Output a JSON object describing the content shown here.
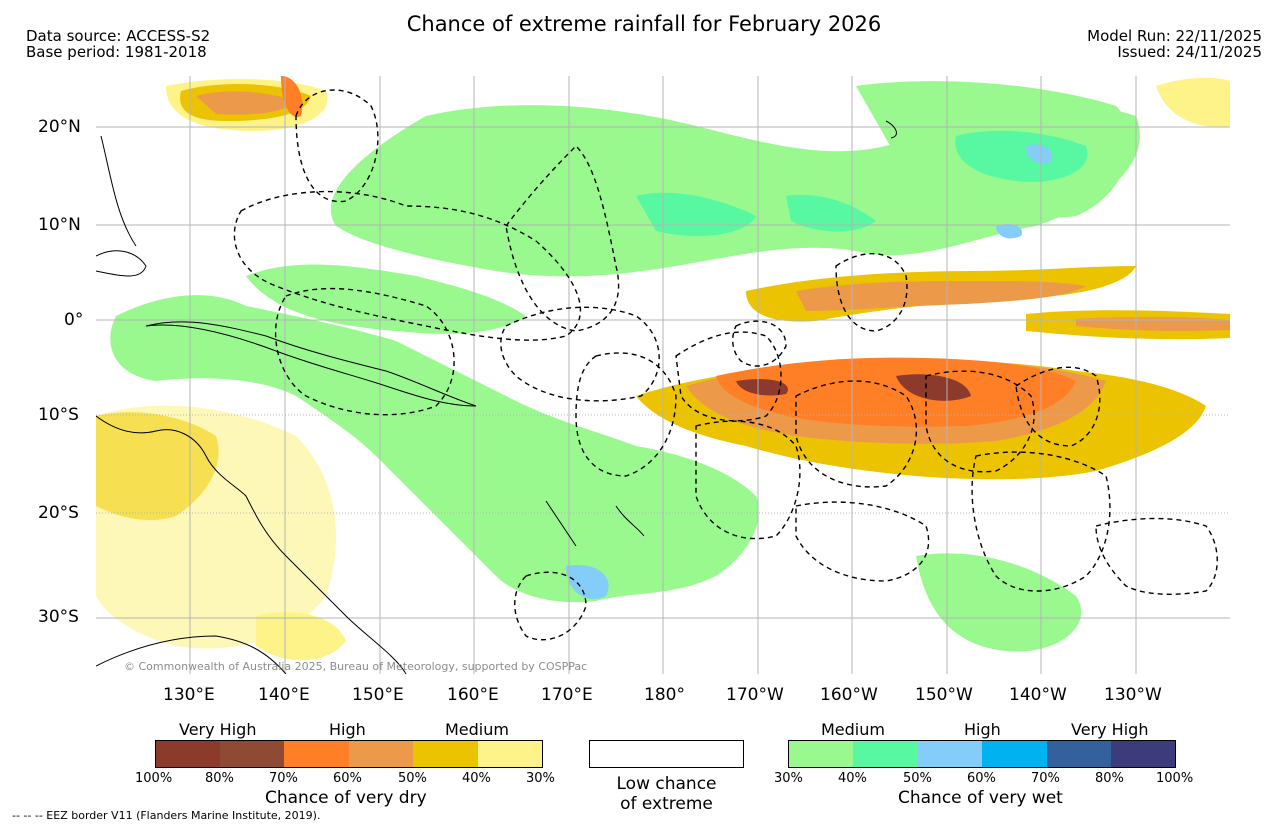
{
  "header": {
    "title": "Chance of extreme rainfall for February 2026",
    "data_source": "Data source: ACCESS-S2",
    "base_period": "Base period: 1981-2018",
    "model_run": "Model Run: 22/11/2025",
    "issued": "Issued: 24/11/2025"
  },
  "map": {
    "lat_labels": [
      "20°N",
      "10°N",
      "0°",
      "10°S",
      "20°S",
      "30°S"
    ],
    "lon_labels": [
      "130°E",
      "140°E",
      "150°E",
      "160°E",
      "170°E",
      "180°",
      "170°W",
      "160°W",
      "150°W",
      "140°W",
      "130°W"
    ],
    "credit": "© Commonwealth of Australia 2025, Bureau of Meteorology, supported by COSPPac",
    "colors": {
      "dry_very_high_100": "#8b3a2c",
      "dry_very_high_80": "#8f4a36",
      "dry_high_70": "#ff7f27",
      "dry_high_60": "#ec9a4a",
      "dry_medium_50": "#ecc300",
      "dry_medium_40": "#fdf389",
      "wet_medium_30": "#99f98f",
      "wet_medium_40": "#57f8a1",
      "wet_high_50": "#85cdf9",
      "wet_high_60": "#00b2ef",
      "wet_very_high_70": "#33619e",
      "wet_very_high_80": "#3c3b7c"
    }
  },
  "legend": {
    "dry": {
      "categories": [
        "Very High",
        "High",
        "Medium"
      ],
      "ticks": [
        "100%",
        "80%",
        "70%",
        "60%",
        "50%",
        "40%",
        "30%"
      ],
      "colors": [
        "#8b3a2c",
        "#8f4a36",
        "#ff7f27",
        "#ec9a4a",
        "#ecc300",
        "#fdf389"
      ],
      "title": "Chance of very dry"
    },
    "low": {
      "line1": "Low chance",
      "line2": "of extreme"
    },
    "wet": {
      "categories": [
        "Medium",
        "High",
        "Very High"
      ],
      "ticks": [
        "30%",
        "40%",
        "50%",
        "60%",
        "70%",
        "80%",
        "100%"
      ],
      "colors": [
        "#99f98f",
        "#57f8a1",
        "#85cdf9",
        "#00b2ef",
        "#33619e",
        "#3c3b7c"
      ],
      "title": "Chance of very wet"
    },
    "eez_note": "-- -- -- EEZ border V11 (Flanders Marine Institute, 2019)."
  }
}
